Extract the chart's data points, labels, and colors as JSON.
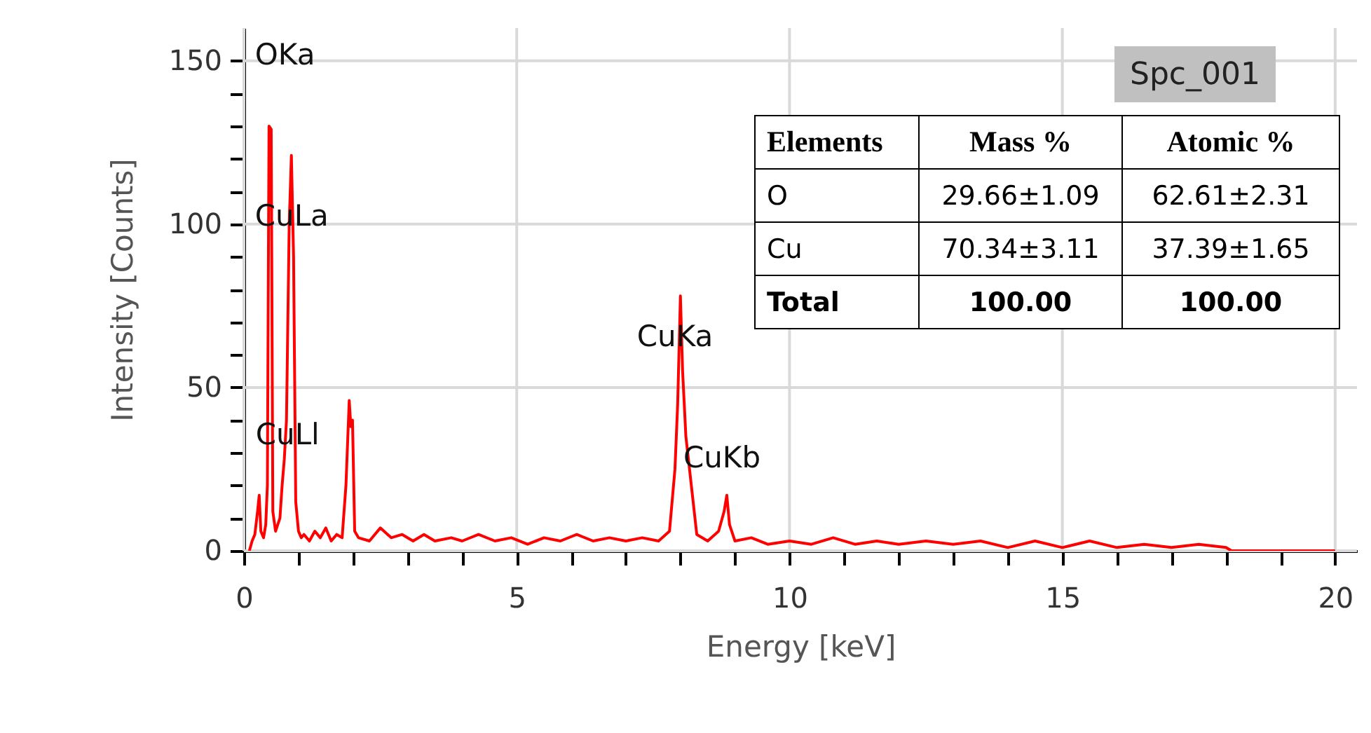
{
  "chart_data": {
    "type": "line",
    "xlabel": "Energy [keV]",
    "ylabel": "Intensity [Counts]",
    "x": [
      0.1,
      0.15,
      0.2,
      0.25,
      0.28,
      0.31,
      0.36,
      0.4,
      0.43,
      0.46,
      0.5,
      0.53,
      0.58,
      0.62,
      0.66,
      0.7,
      0.74,
      0.78,
      0.83,
      0.87,
      0.91,
      0.95,
      1.0,
      1.05,
      1.1,
      1.2,
      1.3,
      1.4,
      1.5,
      1.6,
      1.7,
      1.8,
      1.87,
      1.93,
      1.96,
      1.99,
      2.03,
      2.1,
      2.3,
      2.5,
      2.7,
      2.9,
      3.1,
      3.3,
      3.5,
      3.8,
      4.0,
      4.3,
      4.6,
      4.9,
      5.2,
      5.5,
      5.8,
      6.1,
      6.4,
      6.7,
      7.0,
      7.3,
      7.6,
      7.8,
      7.9,
      7.95,
      8.0,
      8.04,
      8.1,
      8.2,
      8.3,
      8.5,
      8.7,
      8.8,
      8.85,
      8.9,
      9.0,
      9.3,
      9.6,
      10.0,
      10.4,
      10.8,
      11.2,
      11.6,
      12.0,
      12.5,
      13.0,
      13.5,
      14.0,
      14.5,
      15.0,
      15.5,
      16.0,
      16.5,
      17.0,
      17.5,
      18.0,
      18.1,
      20
    ],
    "series": [
      {
        "color": "#ff0000",
        "values": [
          0,
          3,
          5,
          12,
          17,
          6,
          4,
          8,
          20,
          130,
          129,
          12,
          6,
          8,
          10,
          20,
          28,
          40,
          100,
          121,
          90,
          15,
          6,
          4,
          5,
          3,
          6,
          4,
          7,
          3,
          5,
          4,
          20,
          46,
          38,
          40,
          6,
          4,
          3,
          7,
          4,
          5,
          3,
          5,
          3,
          4,
          3,
          5,
          3,
          4,
          2,
          4,
          3,
          5,
          3,
          4,
          3,
          4,
          3,
          6,
          25,
          45,
          78,
          55,
          35,
          20,
          5,
          3,
          6,
          12,
          17,
          8,
          3,
          4,
          2,
          3,
          2,
          4,
          2,
          3,
          2,
          3,
          2,
          3,
          1,
          3,
          1,
          3,
          1,
          2,
          1,
          2,
          1,
          0,
          0
        ]
      }
    ],
    "xlim": [
      0,
      20.4
    ],
    "ylim": [
      0,
      160
    ],
    "xticks": [
      0,
      {
        "value": 1,
        "label": null
      },
      {
        "value": 2,
        "label": null
      },
      {
        "value": 3,
        "label": null
      },
      {
        "value": 4,
        "label": null
      },
      5,
      {
        "value": 6,
        "label": null
      },
      {
        "value": 7,
        "label": null
      },
      {
        "value": 8,
        "label": null
      },
      {
        "value": 9,
        "label": null
      },
      10,
      {
        "value": 11,
        "label": null
      },
      {
        "value": 12,
        "label": null
      },
      {
        "value": 13,
        "label": null
      },
      {
        "value": 14,
        "label": null
      },
      15,
      {
        "value": 16,
        "label": null
      },
      {
        "value": 17,
        "label": null
      },
      {
        "value": 18,
        "label": null
      },
      {
        "value": 19,
        "label": null
      },
      20
    ],
    "yticks": [
      0,
      {
        "value": 10,
        "label": null
      },
      {
        "value": 20,
        "label": null
      },
      {
        "value": 30,
        "label": null
      },
      {
        "value": 40,
        "label": null
      },
      50,
      {
        "value": 60,
        "label": null
      },
      {
        "value": 70,
        "label": null
      },
      {
        "value": 80,
        "label": null
      },
      {
        "value": 90,
        "label": null
      },
      100,
      {
        "value": 110,
        "label": null
      },
      {
        "value": 120,
        "label": null
      },
      {
        "value": 130,
        "label": null
      },
      {
        "value": 140,
        "label": null
      },
      150
    ],
    "grid": true,
    "marker": "none",
    "line_style": "solid",
    "annotations": [
      {
        "text": "OKa",
        "x": 0.46,
        "y": 130
      },
      {
        "text": "CuLa",
        "x": 0.87,
        "y": 121
      },
      {
        "text": "CuLl",
        "x": 0.78,
        "y": 40
      },
      {
        "text": "CuKa",
        "x": 8.0,
        "y": 78
      },
      {
        "text": "CuKb",
        "x": 8.85,
        "y": 17
      },
      "Spc_001",
      "Elements",
      "Mass %",
      "Atomic %",
      "O",
      "29.66±1.09",
      "62.61±2.31",
      "Cu",
      "70.34±3.11",
      "37.39±1.65",
      "Total",
      "100.00",
      "100.00"
    ]
  }
}
